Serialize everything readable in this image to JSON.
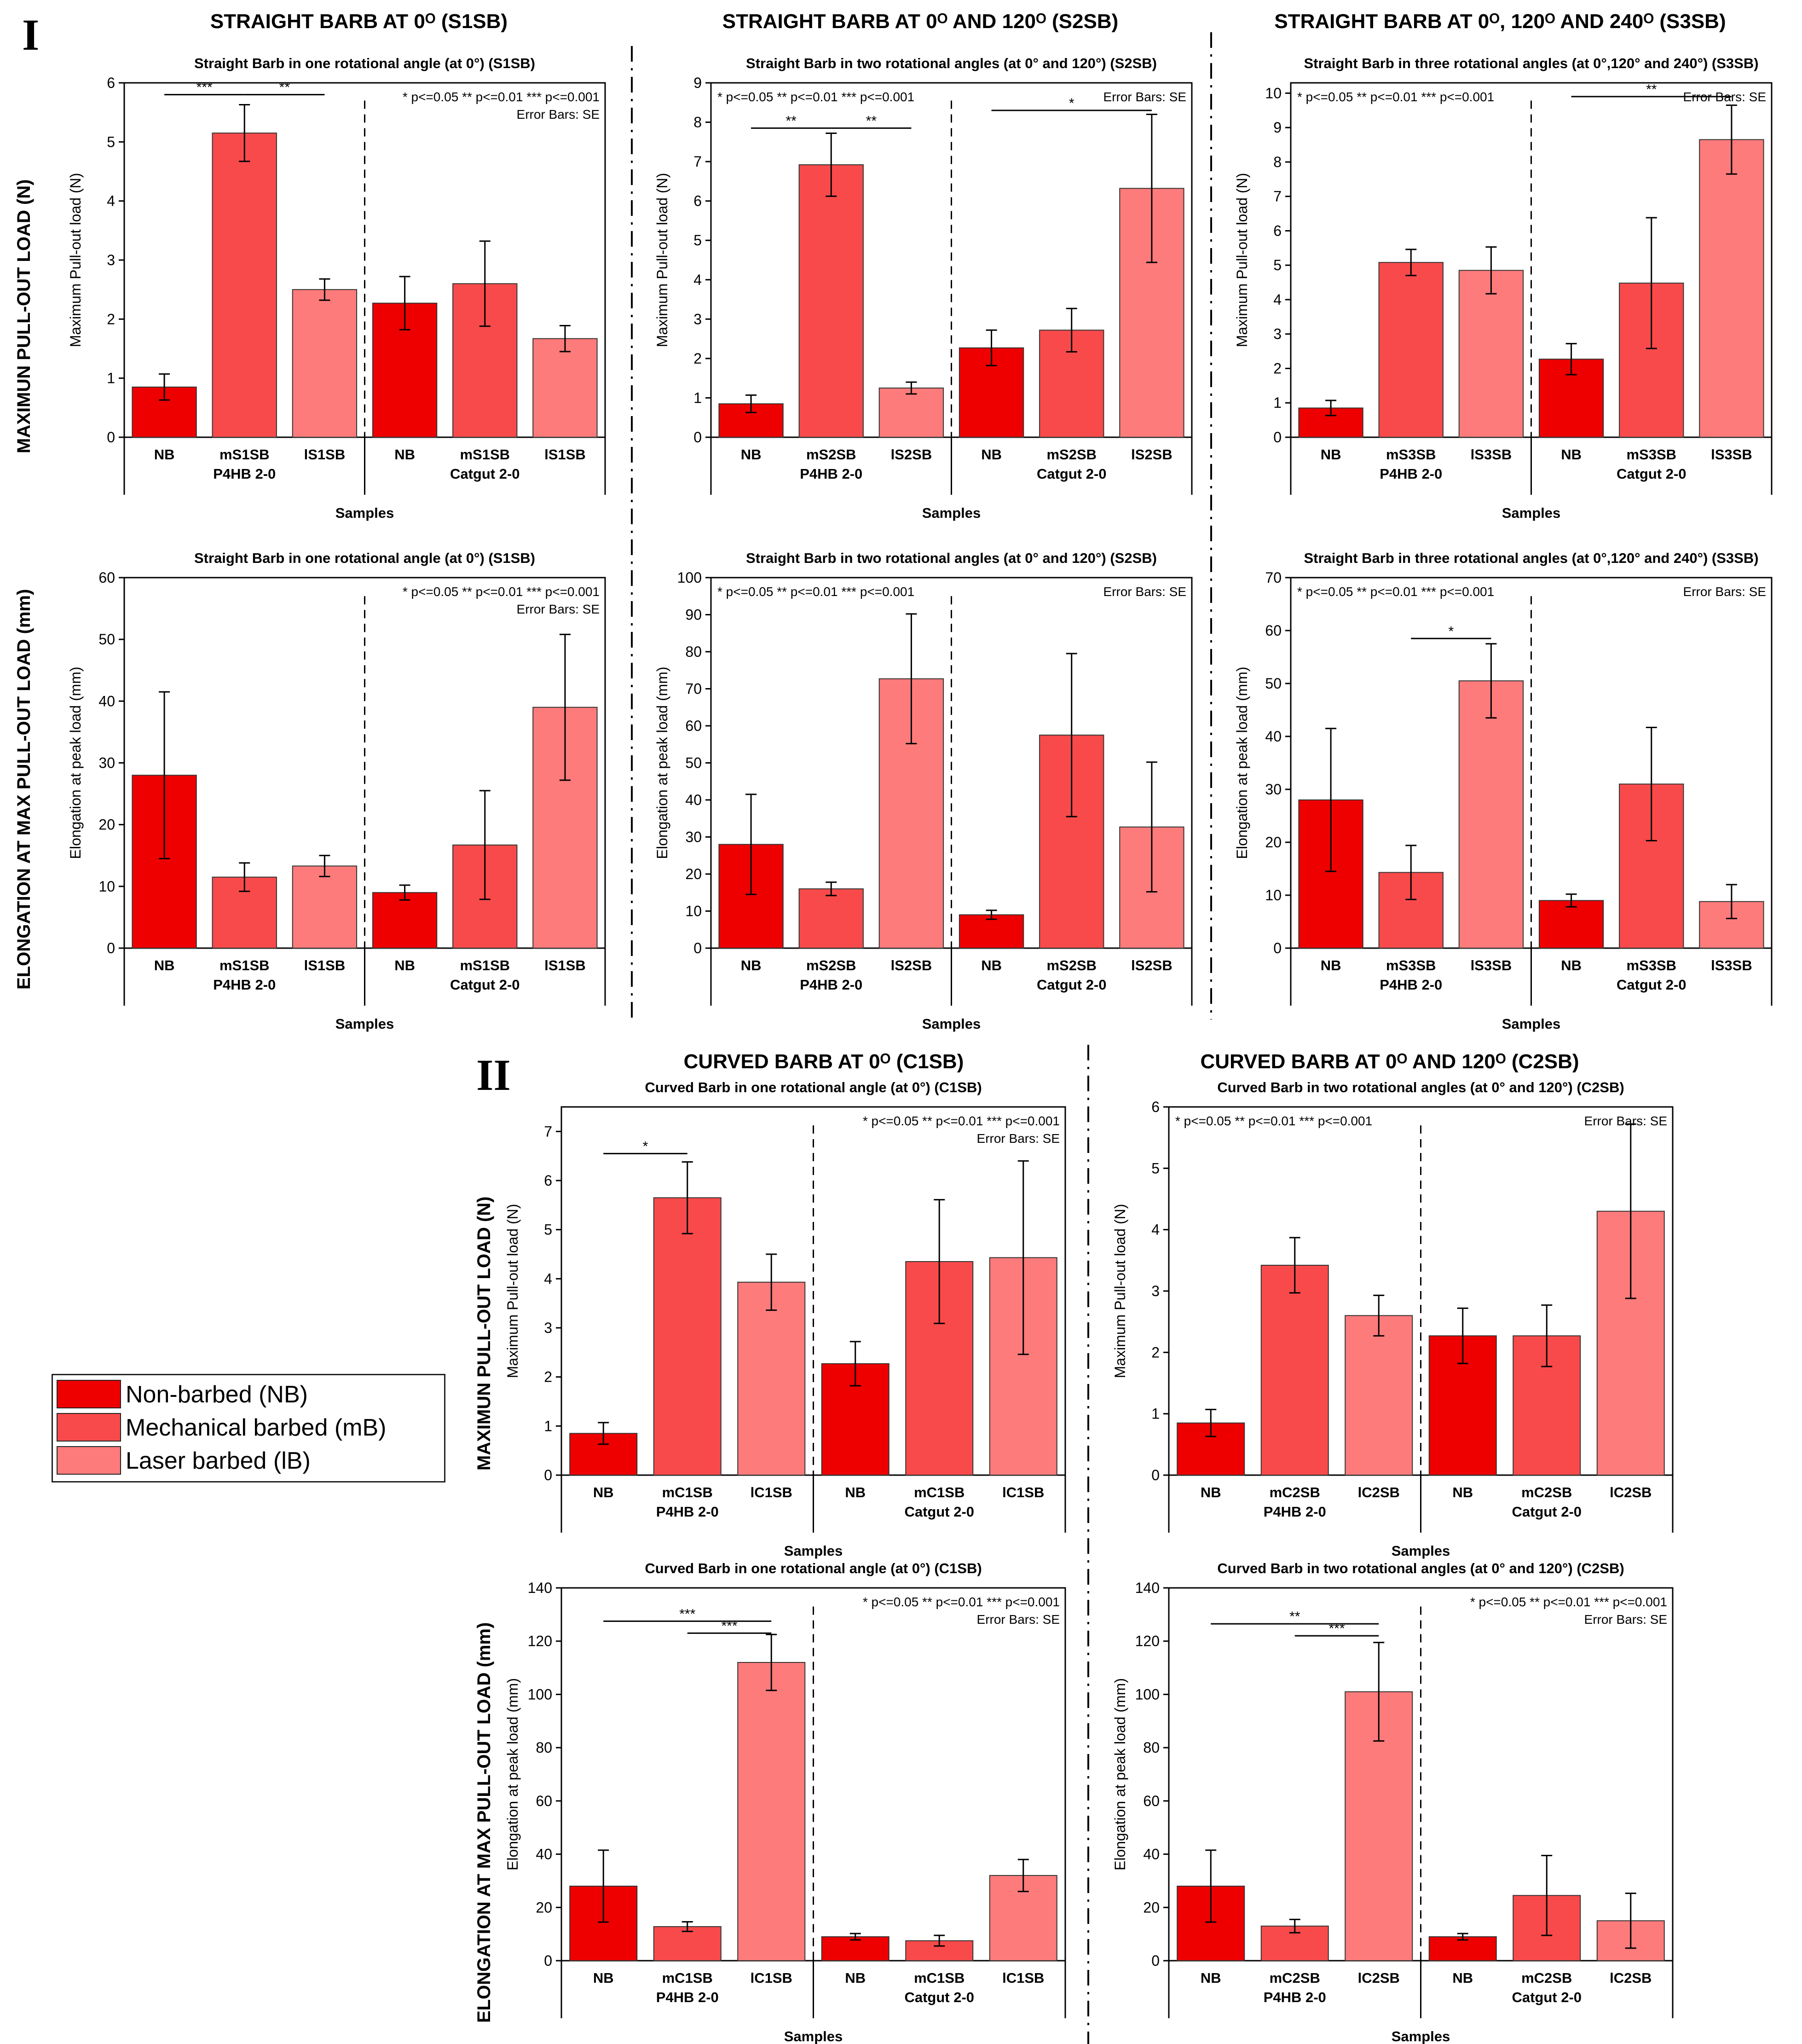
{
  "figure": {
    "section_I_label": "I",
    "section_II_label": "II",
    "column_headers": [
      "STRAIGHT BARB AT 0ᴼ (S1SB)",
      "STRAIGHT BARB AT 0ᴼ AND 120ᴼ (S2SB)",
      "STRAIGHT BARB AT 0ᴼ, 120ᴼ AND 240ᴼ (S3SB)",
      "CURVED BARB AT 0ᴼ (C1SB)",
      "CURVED BARB AT 0ᴼ AND 120ᴼ (C2SB)"
    ],
    "row_labels": {
      "load_I": "MAXIMUN PULL-OUT LOAD (N)",
      "elong_I": "ELONGATION AT MAX PULL-OUT LOAD (mm)",
      "load_II": "MAXIMUN PULL-OUT LOAD (N)",
      "elong_II": "ELONGATION AT MAX PULL-OUT LOAD (mm)"
    },
    "legend": [
      {
        "label": "Non-barbed (NB)",
        "color": "#ee0000"
      },
      {
        "label": "Mechanical barbed (mB)",
        "color": "#f84a4a"
      },
      {
        "label": "Laser barbed (lB)",
        "color": "#fd7b7b"
      }
    ],
    "colors": {
      "nb": "#ee0000",
      "mb": "#f84a4a",
      "lb": "#fd7b7b",
      "edge": "#333333"
    }
  },
  "chart_data": [
    {
      "id": "S1SB-load",
      "type": "bar",
      "title": "Straight Barb in one rotational angle (at 0°) (S1SB)",
      "xlabel": "Samples",
      "ylabel": "Maximum Pull-out load (N)",
      "ylim": [
        0,
        6
      ],
      "yticks": [
        0,
        1,
        2,
        3,
        4,
        5,
        6
      ],
      "categories": [
        "NB",
        "mS1SB",
        "lS1SB",
        "NB",
        "mS1SB",
        "lS1SB"
      ],
      "groups": [
        "P4HB 2-0",
        "Catgut 2-0"
      ],
      "values": [
        0.85,
        5.15,
        2.5,
        2.27,
        2.6,
        1.67
      ],
      "errors": [
        0.22,
        0.48,
        0.18,
        0.45,
        0.72,
        0.22
      ],
      "sig_text": "* p<=0.05    ** p<=0.01    *** p<=0.001",
      "error_text": "Error Bars: SE",
      "sig_pos": "right",
      "brackets": [
        {
          "from": 0,
          "to": 1,
          "label": "***",
          "y": 5.8
        },
        {
          "from": 1,
          "to": 2,
          "label": "**",
          "y": 5.8
        }
      ]
    },
    {
      "id": "S2SB-load",
      "type": "bar",
      "title": "Straight Barb in two rotational angles (at 0° and 120°) (S2SB)",
      "xlabel": "Samples",
      "ylabel": "Maximum Pull-out load (N)",
      "ylim": [
        0,
        9
      ],
      "yticks": [
        0,
        1,
        2,
        3,
        4,
        5,
        6,
        7,
        8,
        9
      ],
      "categories": [
        "NB",
        "mS2SB",
        "lS2SB",
        "NB",
        "mS2SB",
        "lS2SB"
      ],
      "groups": [
        "P4HB 2-0",
        "Catgut 2-0"
      ],
      "values": [
        0.85,
        6.92,
        1.25,
        2.27,
        2.72,
        6.32
      ],
      "errors": [
        0.22,
        0.8,
        0.15,
        0.45,
        0.55,
        1.88
      ],
      "sig_text": "* p<=0.05    ** p<=0.01    *** p<=0.001",
      "error_text": "Error Bars: SE",
      "sig_pos": "left",
      "brackets": [
        {
          "from": 0,
          "to": 1,
          "label": "**",
          "y": 7.85
        },
        {
          "from": 1,
          "to": 2,
          "label": "**",
          "y": 7.85
        },
        {
          "from": 3,
          "to": 5,
          "label": "*",
          "y": 8.3
        }
      ]
    },
    {
      "id": "S3SB-load",
      "type": "bar",
      "title": "Straight Barb in three rotational angles (at 0°,120° and 240°) (S3SB)",
      "xlabel": "Samples",
      "ylabel": "Maximum Pull-out load (N)",
      "ylim": [
        0,
        10.3
      ],
      "yticks": [
        0,
        1,
        2,
        3,
        4,
        5,
        6,
        7,
        8,
        9,
        10
      ],
      "categories": [
        "NB",
        "mS3SB",
        "lS3SB",
        "NB",
        "mS3SB",
        "lS3SB"
      ],
      "groups": [
        "P4HB 2-0",
        "Catgut 2-0"
      ],
      "values": [
        0.85,
        5.08,
        4.85,
        2.27,
        4.48,
        8.65
      ],
      "errors": [
        0.22,
        0.38,
        0.68,
        0.45,
        1.9,
        1.0
      ],
      "sig_text": "* p<=0.05    ** p<=0.01    *** p<=0.001",
      "error_text": "Error Bars: SE",
      "sig_pos": "left",
      "brackets": [
        {
          "from": 3,
          "to": 5,
          "label": "**",
          "y": 9.9
        }
      ]
    },
    {
      "id": "S1SB-elong",
      "type": "bar",
      "title": "Straight Barb in one rotational angle (at 0°) (S1SB)",
      "xlabel": "Samples",
      "ylabel": "Elongation at peak load (mm)",
      "ylim": [
        0,
        60
      ],
      "yticks": [
        0,
        10,
        20,
        30,
        40,
        50,
        60
      ],
      "categories": [
        "NB",
        "mS1SB",
        "lS1SB",
        "NB",
        "mS1SB",
        "lS1SB"
      ],
      "groups": [
        "P4HB 2-0",
        "Catgut 2-0"
      ],
      "values": [
        28,
        11.5,
        13.3,
        9,
        16.7,
        39
      ],
      "errors": [
        13.5,
        2.3,
        1.7,
        1.2,
        8.8,
        11.8
      ],
      "sig_text": "* p<=0.05    ** p<=0.01    *** p<=0.001",
      "error_text": "Error Bars: SE",
      "sig_pos": "right",
      "brackets": []
    },
    {
      "id": "S2SB-elong",
      "type": "bar",
      "title": "Straight Barb in two rotational angles (at 0° and 120°) (S2SB)",
      "xlabel": "Samples",
      "ylabel": "Elongation at peak load (mm)",
      "ylim": [
        0,
        100
      ],
      "yticks": [
        0,
        10,
        20,
        30,
        40,
        50,
        60,
        70,
        80,
        90,
        100
      ],
      "categories": [
        "NB",
        "mS2SB",
        "lS2SB",
        "NB",
        "mS2SB",
        "lS2SB"
      ],
      "groups": [
        "P4HB 2-0",
        "Catgut 2-0"
      ],
      "values": [
        28,
        16,
        72.7,
        9,
        57.5,
        32.7
      ],
      "errors": [
        13.5,
        1.8,
        17.5,
        1.2,
        22,
        17.5
      ],
      "sig_text": "* p<=0.05    ** p<=0.01    *** p<=0.001",
      "error_text": "Error Bars: SE",
      "sig_pos": "left",
      "brackets": []
    },
    {
      "id": "S3SB-elong",
      "type": "bar",
      "title": "Straight Barb in three rotational angles (at 0°,120° and 240°) (S3SB)",
      "xlabel": "Samples",
      "ylabel": "Elongation at peak load (mm)",
      "ylim": [
        0,
        70
      ],
      "yticks": [
        0,
        10,
        20,
        30,
        40,
        50,
        60,
        70
      ],
      "categories": [
        "NB",
        "mS3SB",
        "lS3SB",
        "NB",
        "mS3SB",
        "lS3SB"
      ],
      "groups": [
        "P4HB 2-0",
        "Catgut 2-0"
      ],
      "values": [
        28,
        14.3,
        50.5,
        9,
        31,
        8.8
      ],
      "errors": [
        13.5,
        5.1,
        7,
        1.2,
        10.7,
        3.2
      ],
      "sig_text": "* p<=0.05    ** p<=0.01    *** p<=0.001",
      "error_text": "Error Bars: SE",
      "sig_pos": "left",
      "brackets": [
        {
          "from": 1,
          "to": 2,
          "label": "*",
          "y": 58.5
        }
      ]
    },
    {
      "id": "C1SB-load",
      "type": "bar",
      "title": "Curved Barb in one rotational angle (at 0°) (C1SB)",
      "xlabel": "Samples",
      "ylabel": "Maximum Pull-out load (N)",
      "ylim": [
        0,
        7.5
      ],
      "yticks": [
        0,
        1,
        2,
        3,
        4,
        5,
        6,
        7
      ],
      "categories": [
        "NB",
        "mC1SB",
        "lC1SB",
        "NB",
        "mC1SB",
        "lC1SB"
      ],
      "groups": [
        "P4HB 2-0",
        "Catgut 2-0"
      ],
      "values": [
        0.85,
        5.65,
        3.93,
        2.27,
        4.35,
        4.43
      ],
      "errors": [
        0.22,
        0.73,
        0.57,
        0.45,
        1.26,
        1.97
      ],
      "sig_text": "* p<=0.05    ** p<=0.01    *** p<=0.001",
      "error_text": "Error Bars: SE",
      "sig_pos": "right",
      "brackets": [
        {
          "from": 0,
          "to": 1,
          "label": "*",
          "y": 6.55
        }
      ]
    },
    {
      "id": "C2SB-load",
      "type": "bar",
      "title": "Curved Barb in two rotational angles (at 0° and 120°) (C2SB)",
      "xlabel": "Samples",
      "ylabel": "Maximum Pull-out load (N)",
      "ylim": [
        0,
        6
      ],
      "yticks": [
        0,
        1,
        2,
        3,
        4,
        5,
        6
      ],
      "categories": [
        "NB",
        "mC2SB",
        "lC2SB",
        "NB",
        "mC2SB",
        "lC2SB"
      ],
      "groups": [
        "P4HB 2-0",
        "Catgut 2-0"
      ],
      "values": [
        0.85,
        3.42,
        2.6,
        2.27,
        2.27,
        4.3
      ],
      "errors": [
        0.22,
        0.45,
        0.33,
        0.45,
        0.5,
        1.42
      ],
      "sig_text": "* p<=0.05    ** p<=0.01    *** p<=0.001",
      "error_text": "Error Bars: SE",
      "sig_pos": "left",
      "brackets": []
    },
    {
      "id": "C1SB-elong",
      "type": "bar",
      "title": "Curved Barb in one rotational angle (at 0°) (C1SB)",
      "xlabel": "Samples",
      "ylabel": "Elongation at peak load (mm)",
      "ylim": [
        0,
        140
      ],
      "yticks": [
        0,
        20,
        40,
        60,
        80,
        100,
        120,
        140
      ],
      "categories": [
        "NB",
        "mC1SB",
        "lC1SB",
        "NB",
        "mC1SB",
        "lC1SB"
      ],
      "groups": [
        "P4HB 2-0",
        "Catgut 2-0"
      ],
      "values": [
        28,
        12.8,
        112,
        9,
        7.5,
        32
      ],
      "errors": [
        13.5,
        1.8,
        10.5,
        1.2,
        2,
        6
      ],
      "sig_text": "* p<=0.05    ** p<=0.01    *** p<=0.001",
      "error_text": "Error Bars: SE",
      "sig_pos": "right",
      "brackets": [
        {
          "from": 0,
          "to": 2,
          "label": "***",
          "y": 127.5
        },
        {
          "from": 1,
          "to": 2,
          "label": "***",
          "y": 123
        }
      ]
    },
    {
      "id": "C2SB-elong",
      "type": "bar",
      "title": "Curved Barb in two rotational angles (at 0° and 120°) (C2SB)",
      "xlabel": "Samples",
      "ylabel": "Elongation at peak load (mm)",
      "ylim": [
        0,
        140
      ],
      "yticks": [
        0,
        20,
        40,
        60,
        80,
        100,
        120,
        140
      ],
      "categories": [
        "NB",
        "mC2SB",
        "lC2SB",
        "NB",
        "mC2SB",
        "lC2SB"
      ],
      "groups": [
        "P4HB 2-0",
        "Catgut 2-0"
      ],
      "values": [
        28,
        13,
        101,
        9,
        24.5,
        15
      ],
      "errors": [
        13.5,
        2.5,
        18.5,
        1.2,
        15,
        10.3
      ],
      "sig_text": "* p<=0.05    ** p<=0.01    *** p<=0.001",
      "error_text": "Error Bars: SE",
      "sig_pos": "right",
      "brackets": [
        {
          "from": 0,
          "to": 2,
          "label": "**",
          "y": 126.5
        },
        {
          "from": 1,
          "to": 2,
          "label": "***",
          "y": 122
        }
      ]
    }
  ]
}
